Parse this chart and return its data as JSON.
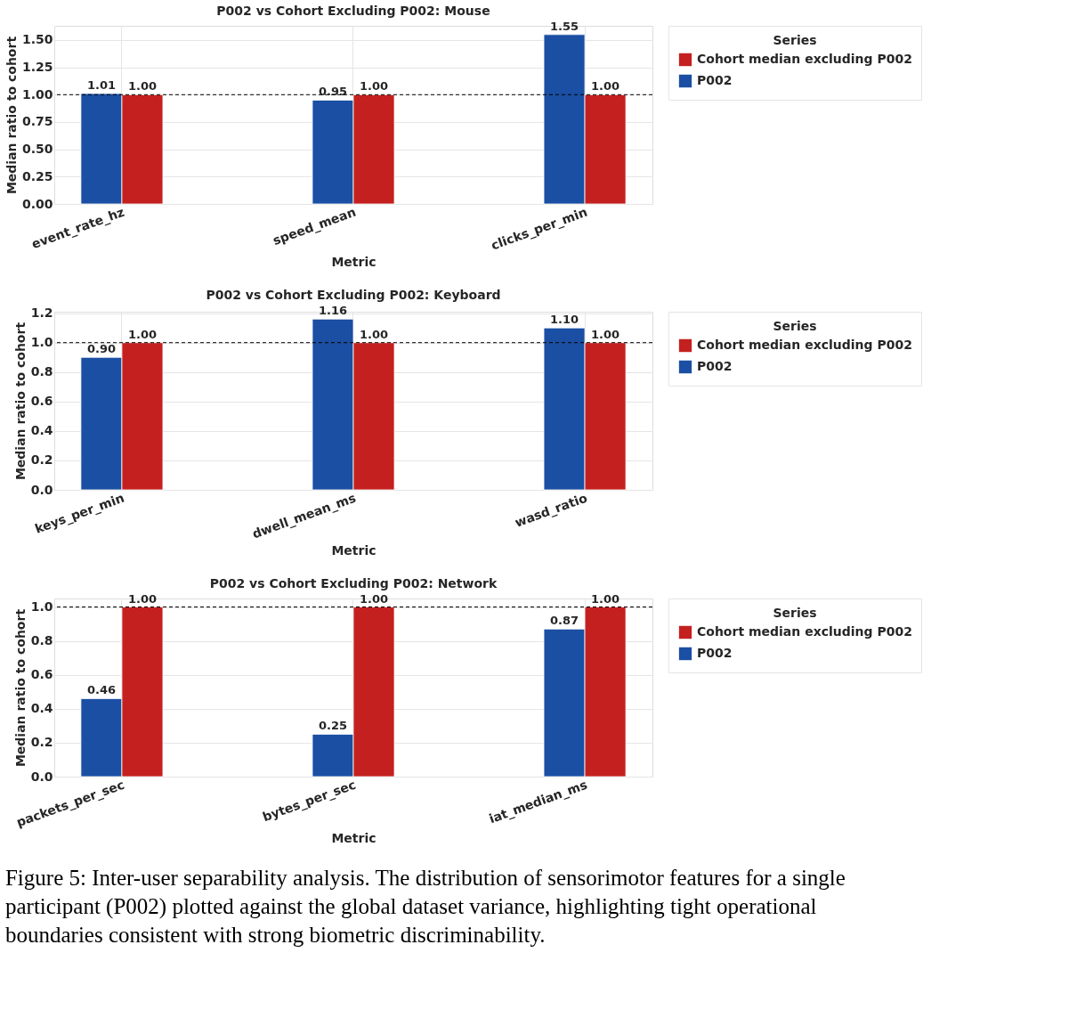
{
  "chart_data": [
    {
      "type": "bar",
      "title": "P002 vs Cohort Excluding P002: Mouse",
      "xlabel": "Metric",
      "ylabel": "Median ratio to cohort",
      "legend_title": "Series",
      "legend": "right",
      "grid": true,
      "categories": [
        "event_rate_hz",
        "speed_mean",
        "clicks_per_min"
      ],
      "series": [
        {
          "name": "P002",
          "color": "#1a4fa3",
          "values": [
            1.01,
            0.95,
            1.55
          ],
          "value_labels": [
            "1.01",
            "0.95",
            "1.55"
          ]
        },
        {
          "name": "Cohort median excluding P002",
          "color": "#c4201f",
          "values": [
            1.0,
            1.0,
            1.0
          ],
          "value_labels": [
            "1.00",
            "1.00",
            "1.00"
          ]
        }
      ],
      "ylim": [
        0,
        1.63
      ],
      "yticks": [
        {
          "value": 0,
          "label": "0.00"
        },
        0.25,
        {
          "value": 0.5,
          "label": "0.50"
        },
        0.75,
        {
          "value": 1,
          "label": "1.00"
        },
        1.25,
        {
          "value": 1.5,
          "label": "1.50"
        }
      ],
      "ref_lines": [
        {
          "axis": "y",
          "value": 1,
          "color": "#000000",
          "line_style": "dashed"
        }
      ]
    },
    {
      "type": "bar",
      "title": "P002 vs Cohort Excluding P002: Keyboard",
      "xlabel": "Metric",
      "ylabel": "Median ratio to cohort",
      "legend_title": "Series",
      "legend": "right",
      "grid": true,
      "categories": [
        "keys_per_min",
        "dwell_mean_ms",
        "wasd_ratio"
      ],
      "series": [
        {
          "name": "P002",
          "color": "#1a4fa3",
          "values": [
            0.9,
            1.16,
            1.1
          ],
          "value_labels": [
            "0.90",
            "1.16",
            "1.10"
          ]
        },
        {
          "name": "Cohort median excluding P002",
          "color": "#c4201f",
          "values": [
            1.0,
            1.0,
            1.0
          ],
          "value_labels": [
            "1.00",
            "1.00",
            "1.00"
          ]
        }
      ],
      "ylim": [
        0,
        1.21
      ],
      "yticks": [
        {
          "value": 0,
          "label": "0.0"
        },
        0.2,
        0.4,
        0.6,
        0.8,
        {
          "value": 1,
          "label": "1.0"
        },
        1.2
      ],
      "ref_lines": [
        {
          "axis": "y",
          "value": 1,
          "color": "#000000",
          "line_style": "dashed"
        }
      ]
    },
    {
      "type": "bar",
      "title": "P002 vs Cohort Excluding P002: Network",
      "xlabel": "Metric",
      "ylabel": "Median ratio to cohort",
      "legend_title": "Series",
      "legend": "right",
      "grid": true,
      "categories": [
        "packets_per_sec",
        "bytes_per_sec",
        "iat_median_ms"
      ],
      "series": [
        {
          "name": "P002",
          "color": "#1a4fa3",
          "values": [
            0.46,
            0.25,
            0.87
          ],
          "value_labels": [
            "0.46",
            "0.25",
            "0.87"
          ]
        },
        {
          "name": "Cohort median excluding P002",
          "color": "#c4201f",
          "values": [
            1.0,
            1.0,
            1.0
          ],
          "value_labels": [
            "1.00",
            "1.00",
            "1.00"
          ]
        }
      ],
      "ylim": [
        0,
        1.05
      ],
      "yticks": [
        {
          "value": 0,
          "label": "0.0"
        },
        0.2,
        0.4,
        0.6,
        0.8,
        {
          "value": 1,
          "label": "1.0"
        }
      ],
      "ref_lines": [
        {
          "axis": "y",
          "value": 1,
          "color": "#000000",
          "line_style": "dashed"
        }
      ],
      "annotations": [
        "Figure 5: Inter-user separability analysis. The distribution of sensorimotor features for a single participant (P002) plotted against the global dataset variance, highlighting tight operational boundaries consistent with strong biometric discriminability."
      ]
    }
  ]
}
